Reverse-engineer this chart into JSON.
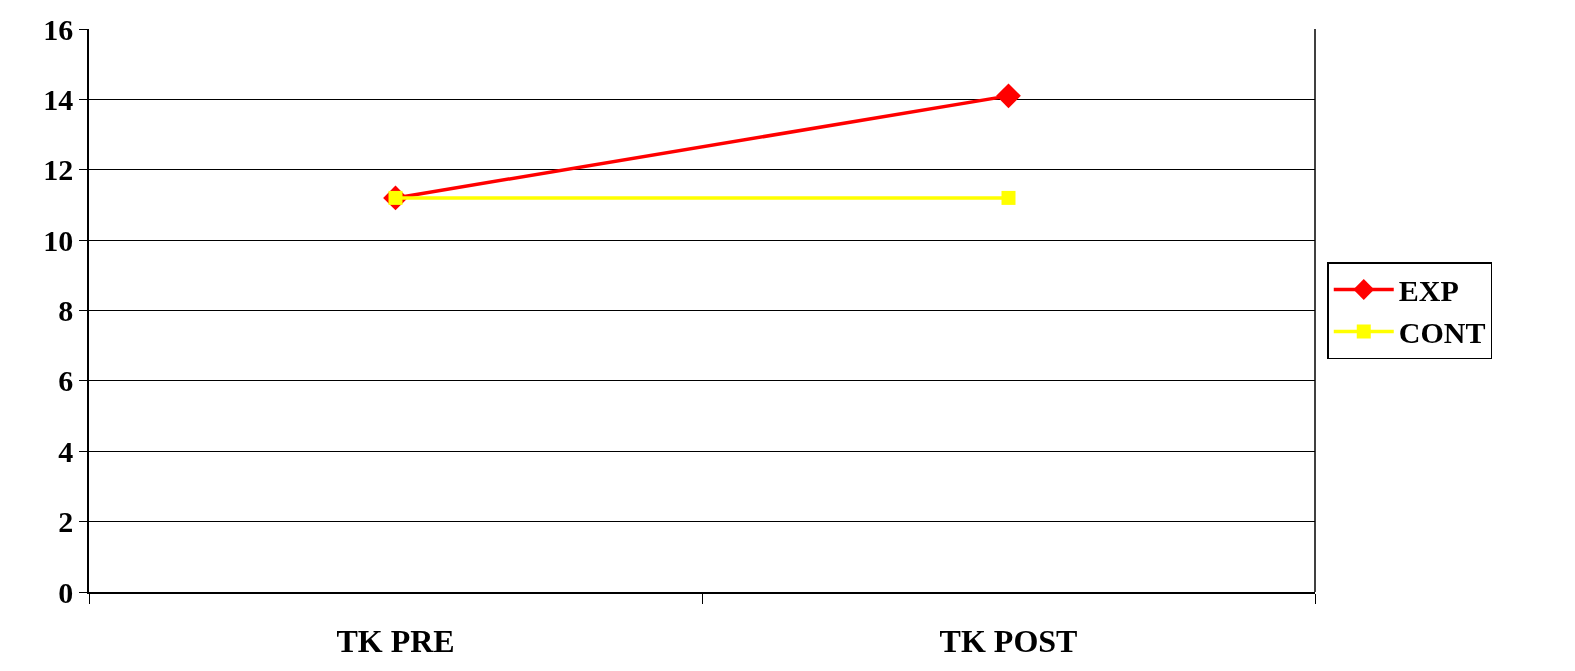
{
  "chart_data": {
    "type": "line",
    "categories": [
      "TK PRE",
      "TK POST"
    ],
    "series": [
      {
        "name": "EXP",
        "color": "#ff0000",
        "values": [
          11.2,
          14.1
        ],
        "marker": "diamond"
      },
      {
        "name": "CONT",
        "color": "#ffff00",
        "values": [
          11.2,
          11.2
        ],
        "marker": "square"
      }
    ],
    "ylim": [
      0,
      16
    ],
    "yticks": [
      0,
      2,
      4,
      6,
      8,
      10,
      12,
      14,
      16
    ],
    "grid": "y",
    "legend": "right",
    "line_style": "solid"
  }
}
